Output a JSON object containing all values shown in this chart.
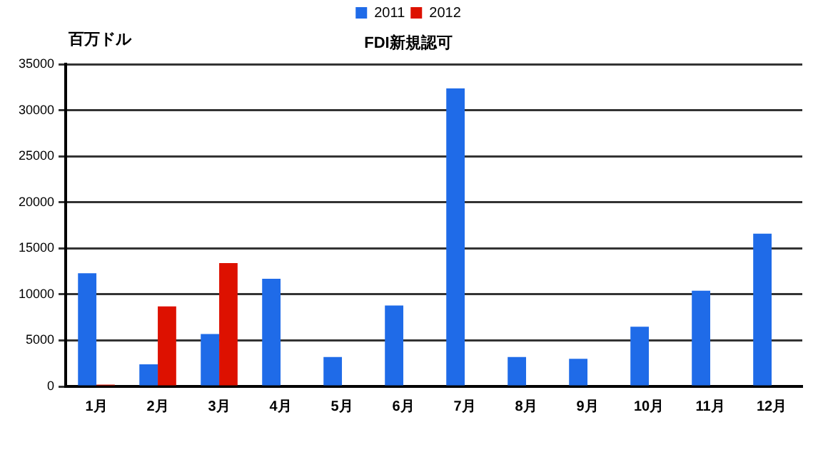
{
  "chart_data": {
    "type": "bar",
    "title": "FDI新規認可",
    "ylabel": "百万ドル",
    "categories": [
      "1月",
      "2月",
      "3月",
      "4月",
      "5月",
      "6月",
      "7月",
      "8月",
      "9月",
      "10月",
      "11月",
      "12月"
    ],
    "series": [
      {
        "name": "2011",
        "color": "#1f6be8",
        "values": [
          12300,
          2400,
          5700,
          11700,
          3200,
          8800,
          32400,
          3200,
          3000,
          6500,
          10400,
          16600
        ]
      },
      {
        "name": "2012",
        "color": "#dd1100",
        "values": [
          200,
          8700,
          13400,
          null,
          null,
          null,
          null,
          null,
          null,
          null,
          null,
          null
        ]
      }
    ],
    "ylim": [
      0,
      35000
    ],
    "yticks": [
      0,
      5000,
      10000,
      15000,
      20000,
      25000,
      30000,
      35000
    ],
    "grid": "y",
    "legend": "top"
  }
}
